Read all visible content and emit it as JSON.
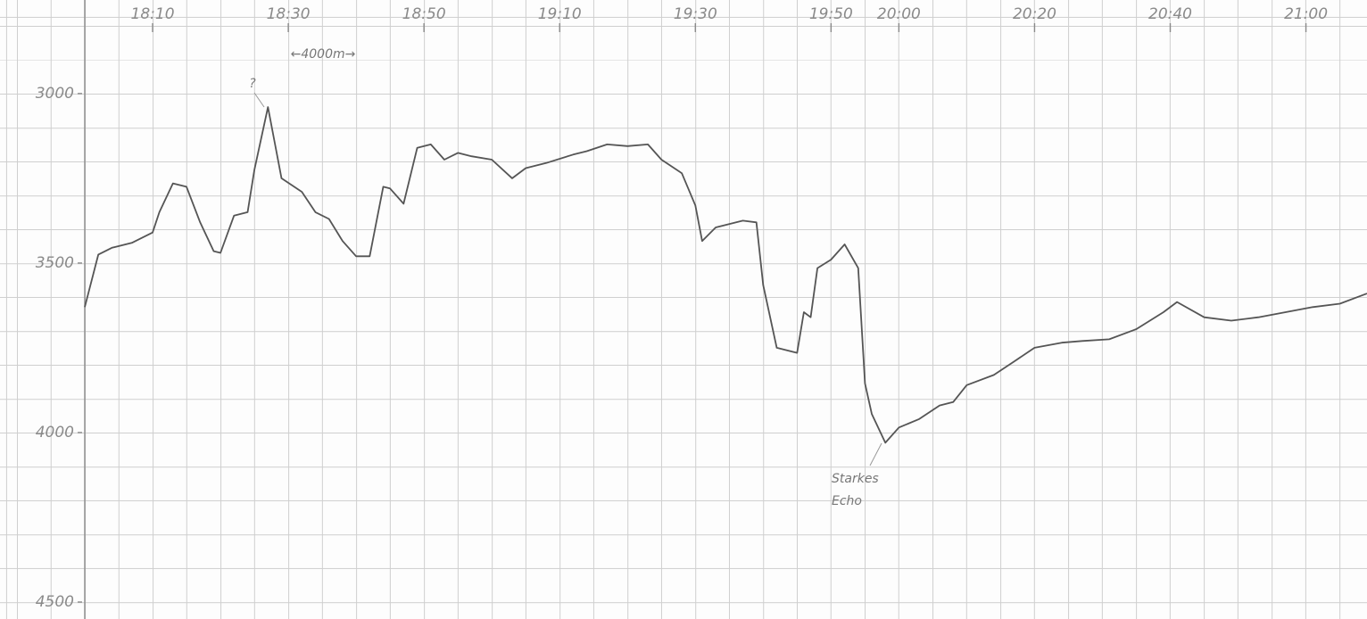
{
  "chart_data": {
    "type": "line",
    "x": [
      "18:00",
      "18:02",
      "18:04",
      "18:07",
      "18:10",
      "18:11",
      "18:13",
      "18:15",
      "18:17",
      "18:19",
      "18:20",
      "18:22",
      "18:24",
      "18:25",
      "18:27",
      "18:28",
      "18:29",
      "18:32",
      "18:34",
      "18:36",
      "18:38",
      "18:40",
      "18:42",
      "18:44",
      "18:45",
      "18:47",
      "18:49",
      "18:51",
      "18:53",
      "18:55",
      "18:57",
      "19:00",
      "19:03",
      "19:05",
      "19:08",
      "19:12",
      "19:14",
      "19:17",
      "19:20",
      "19:23",
      "19:25",
      "19:28",
      "19:30",
      "19:31",
      "19:33",
      "19:37",
      "19:39",
      "19:40",
      "19:42",
      "19:45",
      "19:46",
      "19:47",
      "19:48",
      "19:50",
      "19:52",
      "19:54",
      "19:55",
      "19:56",
      "19:58",
      "20:00",
      "20:03",
      "20:06",
      "20:08",
      "20:10",
      "20:14",
      "20:17",
      "20:20",
      "20:24",
      "20:27",
      "20:31",
      "20:35",
      "20:39",
      "20:41",
      "20:45",
      "20:49",
      "20:53",
      "20:57",
      "21:01",
      "21:05",
      "21:09"
    ],
    "values": [
      3630,
      3475,
      3455,
      3440,
      3410,
      3350,
      3265,
      3275,
      3380,
      3465,
      3470,
      3360,
      3350,
      3225,
      3040,
      3145,
      3250,
      3290,
      3350,
      3370,
      3435,
      3480,
      3480,
      3275,
      3280,
      3325,
      3160,
      3150,
      3195,
      3175,
      3185,
      3195,
      3250,
      3220,
      3205,
      3180,
      3170,
      3150,
      3155,
      3150,
      3195,
      3235,
      3330,
      3435,
      3395,
      3375,
      3380,
      3565,
      3750,
      3765,
      3645,
      3660,
      3515,
      3490,
      3445,
      3515,
      3855,
      3945,
      4030,
      3985,
      3960,
      3920,
      3910,
      3860,
      3830,
      3790,
      3750,
      3735,
      3730,
      3725,
      3695,
      3645,
      3615,
      3660,
      3670,
      3660,
      3645,
      3630,
      3620,
      3590
    ],
    "color": "#555555",
    "xlim": [
      "18:00",
      "21:09"
    ],
    "xticks": [
      "18:10",
      "18:30",
      "18:50",
      "19:10",
      "19:30",
      "19:50",
      "20:00",
      "20:20",
      "20:40",
      "21:00"
    ],
    "ylim": [
      2724,
      4550
    ],
    "y_inverted": true,
    "yticks": [
      3000,
      3500,
      4000,
      4500
    ],
    "annotations": [
      "?",
      "←4000m→",
      "Starkes",
      "Echo"
    ]
  }
}
